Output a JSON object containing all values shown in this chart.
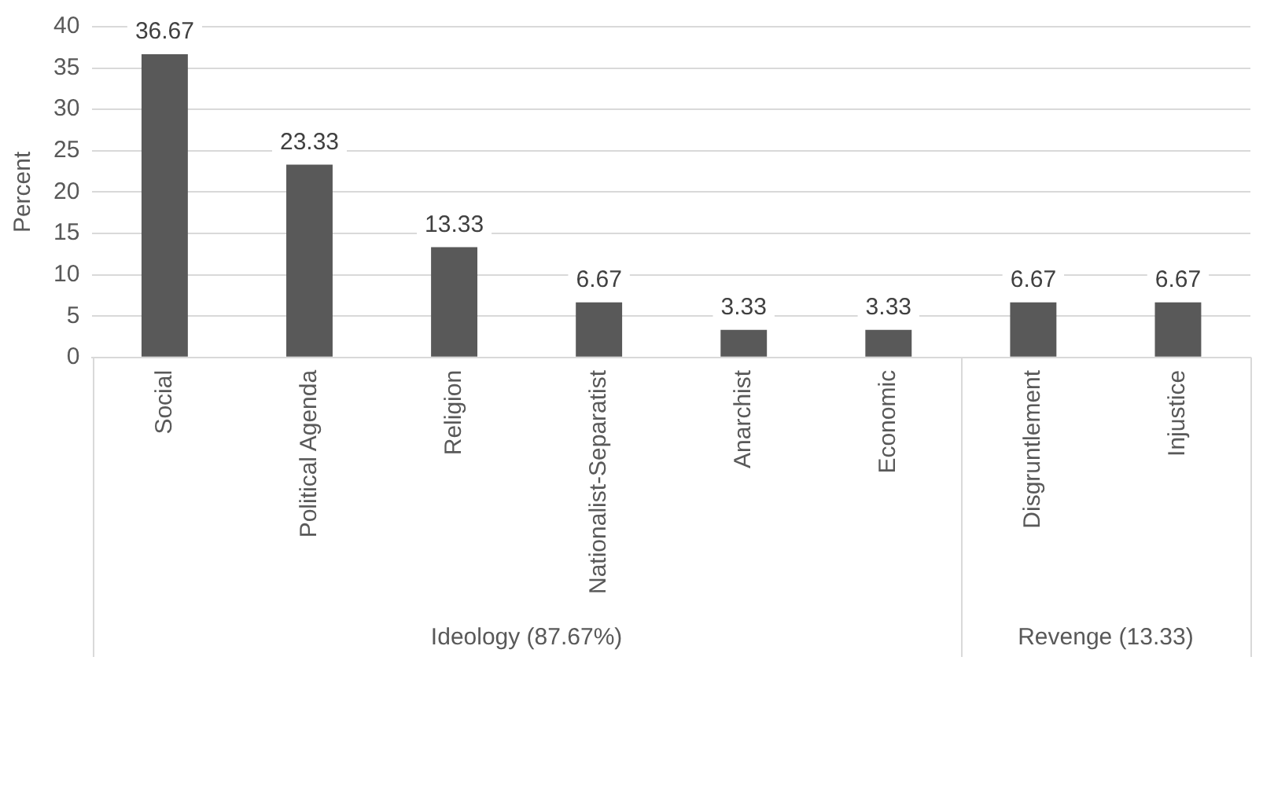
{
  "chart_data": {
    "type": "bar",
    "ylabel": "Percent",
    "categories": [
      "Social",
      "Political Agenda",
      "Religion",
      "Nationalist-Separatist",
      "Anarchist",
      "Economic",
      "Disgruntlement",
      "Injustice"
    ],
    "values": [
      36.67,
      23.33,
      13.33,
      6.67,
      3.33,
      3.33,
      6.67,
      6.67
    ],
    "color": "#595959",
    "ylim": [
      0,
      40
    ],
    "yticks": [
      0,
      5,
      10,
      15,
      20,
      25,
      30,
      35,
      40
    ],
    "grid": "y",
    "data_labels": true,
    "legend": false,
    "annotations": [
      "Ideology (87.67%)",
      "Revenge (13.33)"
    ]
  }
}
